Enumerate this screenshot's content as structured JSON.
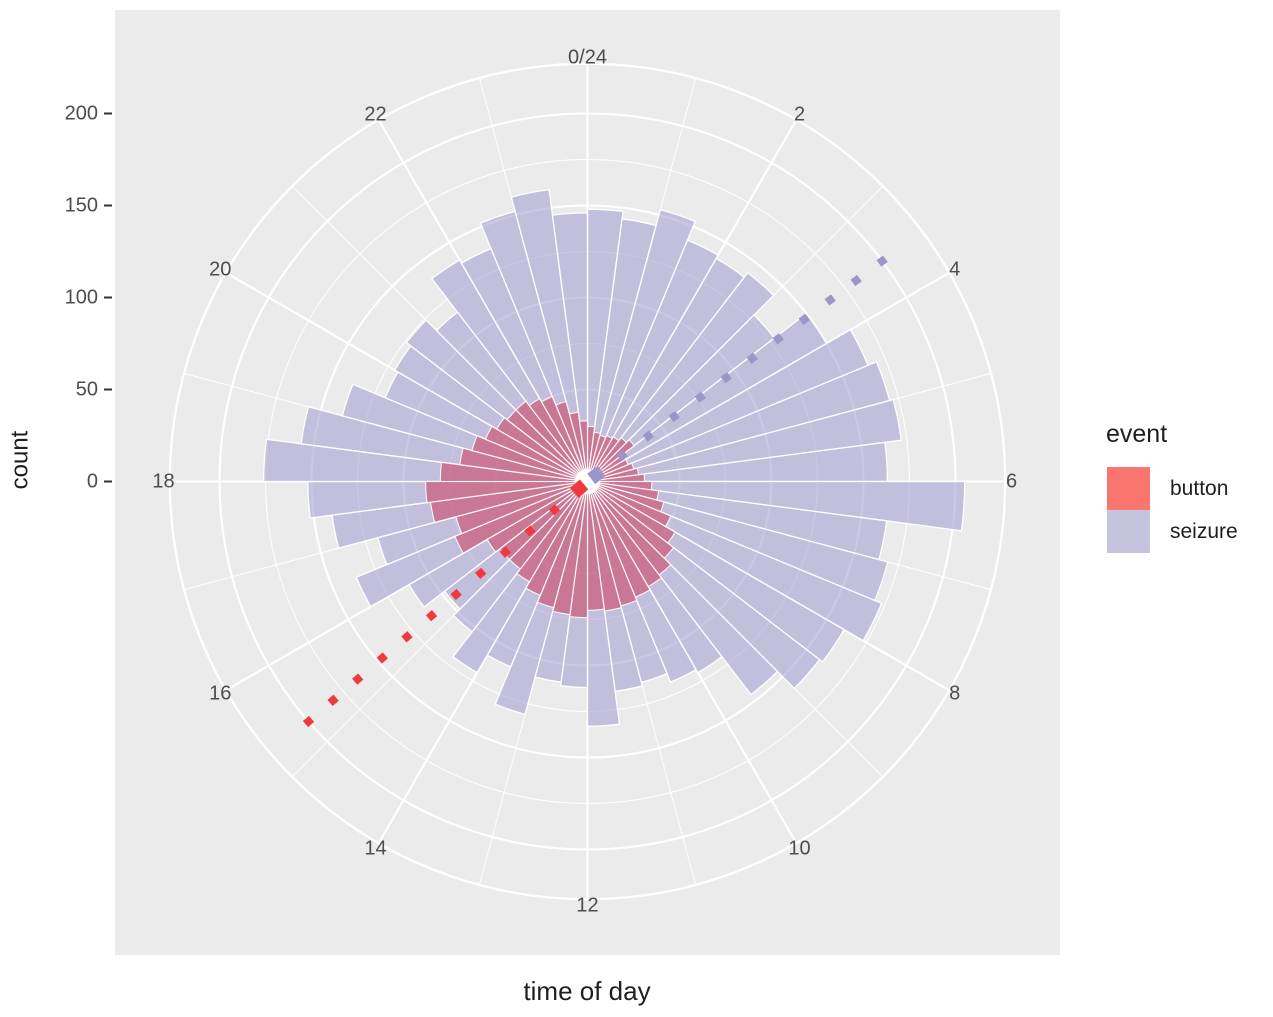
{
  "chart_data": {
    "type": "bar",
    "subtype": "polar-rose-histogram",
    "title": "",
    "xlabel": "time of day",
    "ylabel": "count",
    "coord": "polar: 0/24 h at top, hours increase clockwise, 48 half-hour bins from 0 to 24",
    "bin_width_hours": 0.5,
    "series": [
      {
        "name": "seizure",
        "values": [
          148,
          144,
          153,
          142,
          140,
          143,
          128,
          150,
          165,
          170,
          172,
          163,
          205,
          164,
          169,
          173,
          161,
          159,
          146,
          120,
          118,
          113,
          115,
          133,
          112,
          110,
          131,
          109,
          120,
          103,
          98,
          112,
          136,
          118,
          140,
          152,
          176,
          157,
          138,
          119,
          121,
          124,
          116,
          139,
          137,
          152,
          160,
          146
        ]
      },
      {
        "name": "button",
        "values": [
          30,
          27,
          26,
          27,
          28,
          30,
          32,
          24,
          24,
          26,
          28,
          31,
          35,
          39,
          43,
          49,
          55,
          59,
          64,
          66,
          68,
          70,
          71,
          70,
          74,
          73,
          71,
          67,
          63,
          60,
          60,
          63,
          78,
          74,
          86,
          88,
          80,
          70,
          65,
          60,
          57,
          55,
          55,
          52,
          50,
          45,
          38,
          33
        ]
      }
    ],
    "mean_direction_markers": [
      {
        "series": "button",
        "hour": 15.3,
        "angle_deg_from_north": 229.3,
        "extent_count": 200,
        "style": "dotted",
        "color": "#EE3A3C"
      },
      {
        "series": "seizure",
        "hour": 3.55,
        "angle_deg_from_north": 53.2,
        "extent_count": 200,
        "style": "dotted",
        "color": "#9A96C9"
      }
    ],
    "r_axis": {
      "label": "count",
      "ticks": [
        0,
        50,
        100,
        150,
        200
      ],
      "minor_ticks": [
        25,
        75,
        125,
        175
      ],
      "outer_ring_value": 227,
      "lim": [
        0,
        227
      ]
    },
    "theta_axis": {
      "label": "time of day",
      "tick_hours": [
        0,
        2,
        4,
        6,
        8,
        10,
        12,
        14,
        16,
        18,
        20,
        22
      ],
      "tick_labels": [
        "0/24",
        "2",
        "4",
        "6",
        "8",
        "10",
        "12",
        "14",
        "16",
        "18",
        "20",
        "22"
      ]
    },
    "legend": {
      "title": "event",
      "position": "right",
      "entries": [
        {
          "label": "button",
          "swatch_color": "#F8766D"
        },
        {
          "label": "seizure",
          "swatch_color": "#C6C3DF"
        }
      ]
    },
    "grid": "on",
    "colors": {
      "panel_background": "#EBEBEB",
      "gridline": "#FFFFFF",
      "seizure_bar_fill": "rgba(158,155,206,0.55)",
      "button_bar_fill": "rgba(205,60,90,0.55)",
      "bar_border": "#FFFFFF",
      "tick_text": "#4D4D4D",
      "axis_title_text": "#1F1F1F",
      "red_dot": "#EE3A3C",
      "purple_dot": "#9A96C9"
    }
  }
}
